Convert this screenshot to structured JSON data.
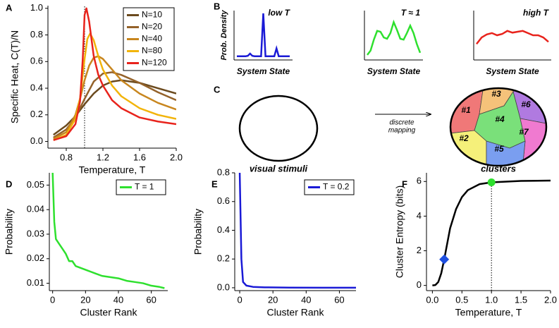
{
  "chart_data": [
    {
      "type": "line",
      "panel_label": "A",
      "xlabel": "Temperature, T",
      "ylabel": "Specific Heat, C(T)/N",
      "xlim": [
        0.6,
        2.0
      ],
      "ylim": [
        -0.05,
        1.02
      ],
      "xticks": [
        0.8,
        1.2,
        1.6,
        {
          "value": 2,
          "label": "2.0"
        }
      ],
      "yticks": [
        {
          "value": 0,
          "label": "0.0"
        },
        0.2,
        0.4,
        0.6,
        0.8,
        {
          "value": 1,
          "label": "1.0"
        }
      ],
      "legend": "upper right",
      "reference_line": {
        "x": 1,
        "style": "dotted"
      },
      "series": [
        {
          "name": "N=10",
          "color": "#6b4a1e",
          "x": [
            0.66,
            0.8,
            0.9,
            1.0,
            1.1,
            1.2,
            1.3,
            1.4,
            1.6,
            1.8,
            2.0
          ],
          "values": [
            0.05,
            0.12,
            0.19,
            0.28,
            0.36,
            0.42,
            0.45,
            0.46,
            0.44,
            0.4,
            0.36
          ]
        },
        {
          "name": "N=20",
          "color": "#94622a",
          "x": [
            0.66,
            0.8,
            0.9,
            1.0,
            1.1,
            1.2,
            1.3,
            1.4,
            1.6,
            1.8,
            2.0
          ],
          "values": [
            0.03,
            0.09,
            0.18,
            0.32,
            0.45,
            0.51,
            0.52,
            0.5,
            0.44,
            0.37,
            0.31
          ]
        },
        {
          "name": "N=40",
          "color": "#c8861e",
          "x": [
            0.66,
            0.8,
            0.9,
            0.95,
            1.0,
            1.05,
            1.1,
            1.15,
            1.2,
            1.3,
            1.4,
            1.6,
            1.8,
            2.0
          ],
          "values": [
            0.02,
            0.07,
            0.2,
            0.32,
            0.46,
            0.57,
            0.63,
            0.64,
            0.62,
            0.54,
            0.46,
            0.36,
            0.29,
            0.24
          ]
        },
        {
          "name": "N=80",
          "color": "#f2b40a",
          "x": [
            0.66,
            0.8,
            0.9,
            0.95,
            1.0,
            1.03,
            1.06,
            1.1,
            1.15,
            1.2,
            1.3,
            1.4,
            1.6,
            1.8,
            2.0
          ],
          "values": [
            0.01,
            0.05,
            0.17,
            0.32,
            0.62,
            0.77,
            0.81,
            0.76,
            0.64,
            0.54,
            0.42,
            0.34,
            0.25,
            0.2,
            0.17
          ]
        },
        {
          "name": "N=120",
          "color": "#e8231c",
          "x": [
            0.66,
            0.8,
            0.9,
            0.95,
            0.98,
            1.0,
            1.02,
            1.05,
            1.1,
            1.15,
            1.2,
            1.3,
            1.4,
            1.6,
            1.8,
            2.0
          ],
          "values": [
            0.01,
            0.04,
            0.13,
            0.3,
            0.62,
            0.95,
            1.0,
            0.9,
            0.64,
            0.5,
            0.42,
            0.31,
            0.25,
            0.18,
            0.15,
            0.13
          ]
        }
      ]
    },
    {
      "type": "density",
      "panel_label": "B",
      "title": "low T",
      "xlabel": "System State",
      "ylabel": "Prob. Density",
      "series": [
        {
          "color": "#1a1ad6",
          "values": [
            0.02,
            0.02,
            0.02,
            0.02,
            0.02,
            0.03,
            0.08,
            0.03,
            0.02,
            0.02,
            0.02,
            0.02,
            1.0,
            0.02,
            0.02,
            0.02,
            0.02,
            0.02,
            0.2,
            0.02,
            0.02,
            0.02,
            0.02,
            0.02,
            0.02
          ]
        }
      ]
    },
    {
      "type": "density",
      "title": "T ≈ 1",
      "xlabel": "System State",
      "series": [
        {
          "color": "#2ee02e",
          "values": [
            0.05,
            0.15,
            0.4,
            0.6,
            0.58,
            0.45,
            0.42,
            0.55,
            0.8,
            0.62,
            0.42,
            0.4,
            0.55,
            0.72,
            0.55,
            0.3,
            0.1
          ]
        }
      ]
    },
    {
      "type": "density",
      "title": "high T",
      "xlabel": "System State",
      "series": [
        {
          "color": "#e8231c",
          "values": [
            0.3,
            0.45,
            0.52,
            0.55,
            0.5,
            0.53,
            0.6,
            0.56,
            0.58,
            0.6,
            0.55,
            0.5,
            0.5,
            0.45,
            0.35
          ]
        }
      ]
    },
    {
      "type": "line",
      "panel_label": "D",
      "xlabel": "Cluster Rank",
      "ylabel": "Probability",
      "xlim": [
        -2,
        70
      ],
      "ylim": [
        0.007,
        0.055
      ],
      "xticks": [
        0,
        20,
        40,
        60
      ],
      "yticks": [
        0.01,
        0.02,
        0.03,
        0.04,
        0.05
      ],
      "legend": "upper right",
      "series": [
        {
          "name": "T = 1",
          "color": "#2ee02e",
          "x": [
            0,
            1,
            2,
            4,
            6,
            8,
            10,
            12,
            14,
            18,
            22,
            26,
            30,
            35,
            40,
            45,
            50,
            55,
            60,
            65,
            68
          ],
          "values": [
            0.055,
            0.035,
            0.028,
            0.026,
            0.024,
            0.022,
            0.019,
            0.019,
            0.017,
            0.016,
            0.015,
            0.014,
            0.013,
            0.0125,
            0.012,
            0.011,
            0.0105,
            0.01,
            0.009,
            0.0085,
            0.008
          ]
        }
      ]
    },
    {
      "type": "line",
      "panel_label": "E",
      "xlabel": "Cluster Rank",
      "ylabel": "Probability",
      "xlim": [
        -3,
        70
      ],
      "ylim": [
        -0.02,
        0.8
      ],
      "xticks": [
        0,
        20,
        40,
        60
      ],
      "yticks": [
        {
          "value": 0,
          "label": "0.0"
        },
        0.2,
        0.4,
        0.6,
        0.8
      ],
      "legend": "upper right",
      "series": [
        {
          "name": "T = 0.2",
          "color": "#1a1ad6",
          "x": [
            0,
            1,
            2,
            4,
            8,
            15,
            30,
            50,
            70
          ],
          "values": [
            0.8,
            0.2,
            0.04,
            0.015,
            0.006,
            0.003,
            0.001,
            0,
            0
          ]
        }
      ]
    },
    {
      "type": "line",
      "panel_label": "F",
      "xlabel": "Temperature, T",
      "ylabel": "Cluster Entropy (bits)",
      "xlim": [
        -0.1,
        2.0
      ],
      "ylim": [
        -0.3,
        6.5
      ],
      "xticks": [
        {
          "value": 0,
          "label": "0.0"
        },
        0.5,
        {
          "value": 1,
          "label": "1.0"
        },
        1.5,
        {
          "value": 2,
          "label": "2.0"
        }
      ],
      "yticks": [
        0,
        2,
        4,
        6
      ],
      "reference_line": {
        "x": 1,
        "style": "dotted"
      },
      "series": [
        {
          "color": "#000000",
          "x": [
            0,
            0.05,
            0.1,
            0.15,
            0.2,
            0.25,
            0.3,
            0.4,
            0.5,
            0.6,
            0.8,
            1.0,
            1.5,
            2.0
          ],
          "values": [
            0,
            0.02,
            0.2,
            0.7,
            1.5,
            2.4,
            3.3,
            4.4,
            5.1,
            5.5,
            5.85,
            5.95,
            6.03,
            6.05
          ]
        }
      ],
      "points": [
        {
          "x": 0.2,
          "y": 1.5,
          "color": "#1f4fe0",
          "marker": "diamond"
        },
        {
          "x": 1,
          "y": 5.95,
          "color": "#2ee02e",
          "marker": "circle"
        }
      ]
    }
  ],
  "panel_c": {
    "panel_label": "C",
    "left_label": "visual stimuli",
    "arrow_label": [
      "discrete",
      "mapping"
    ],
    "right_label": "clusters",
    "clusters": [
      "#1",
      "#2",
      "#3",
      "#4",
      "#5",
      "#6",
      "#7"
    ]
  }
}
